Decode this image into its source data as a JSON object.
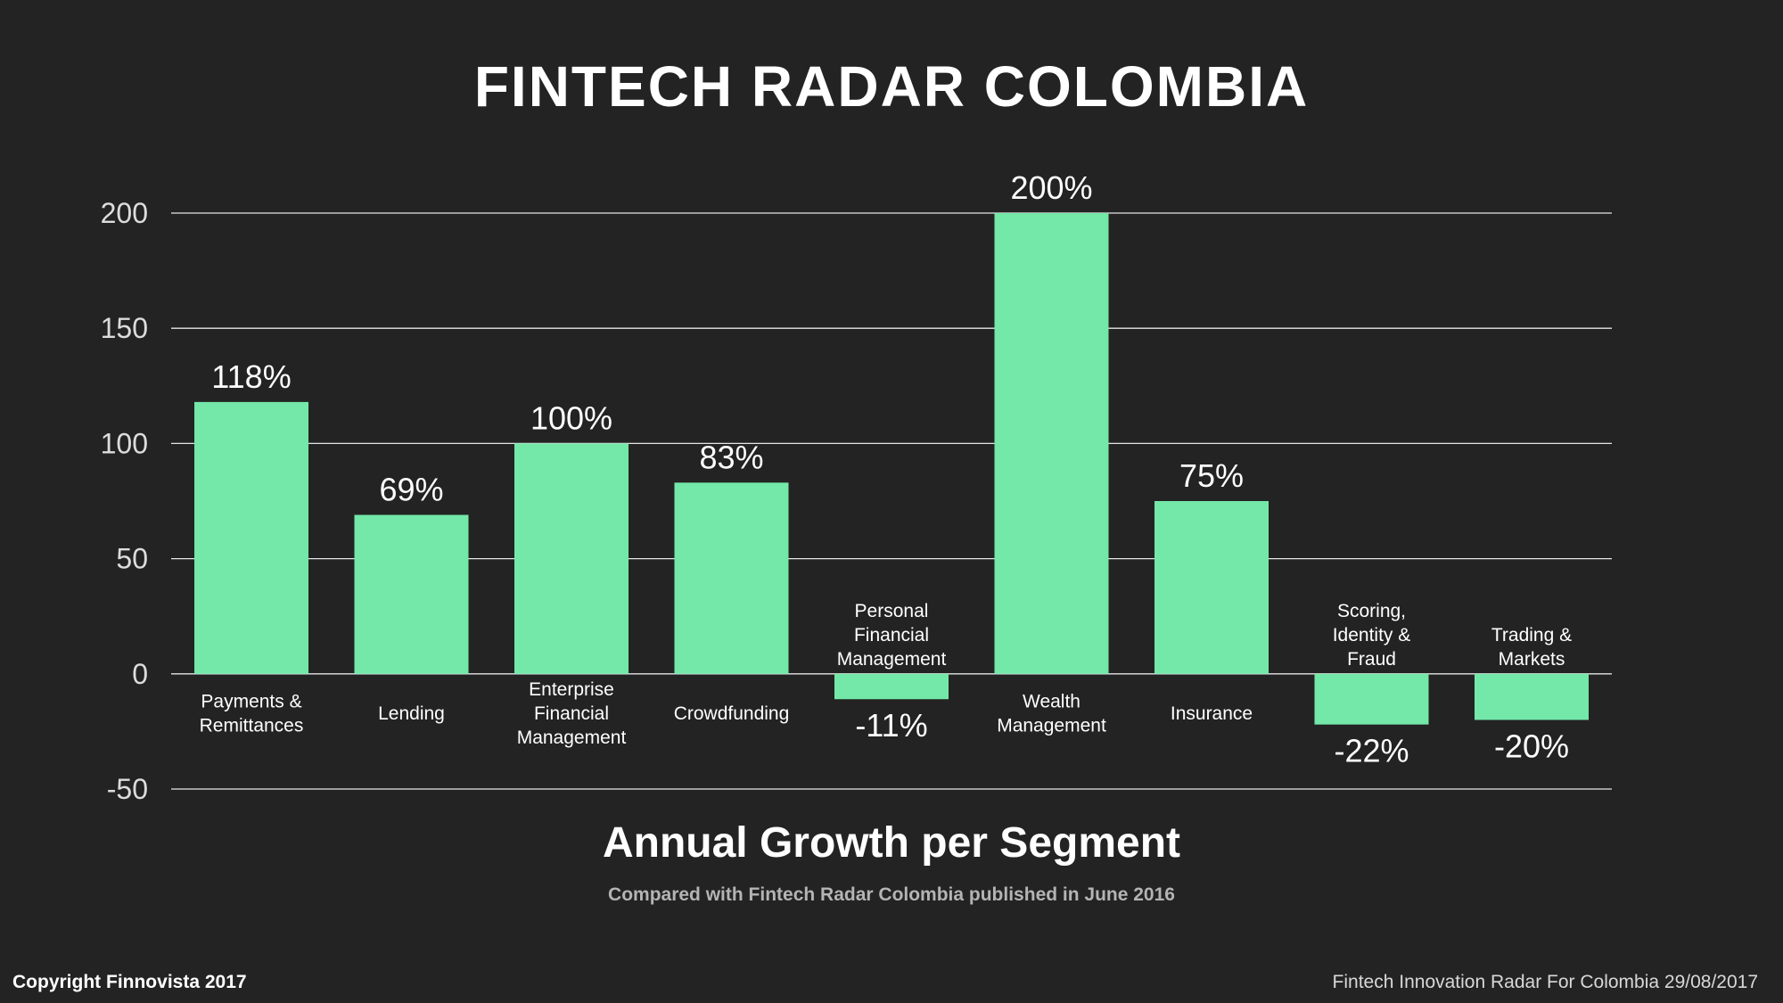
{
  "header": {
    "title": "FINTECH RADAR COLOMBIA"
  },
  "footer": {
    "copyright": "Copyright Finnovista 2017",
    "note": "Fintech Innovation Radar For Colombia 29/08/2017"
  },
  "colors": {
    "bar": "#73e8a9",
    "background": "#232323",
    "grid": "#e6e6e6"
  },
  "chart_data": {
    "type": "bar",
    "xlabel": "Annual Growth per Segment",
    "subtitle": "Compared with Fintech Radar Colombia published in June 2016",
    "ylabel": "",
    "ylim": [
      -50,
      200
    ],
    "yticks": [
      200,
      150,
      100,
      50,
      0,
      -50
    ],
    "grid": true,
    "legend": "none",
    "categories": [
      [
        "Payments &",
        "Remittances"
      ],
      [
        "Lending"
      ],
      [
        "Enterprise",
        "Financial",
        "Management"
      ],
      [
        "Crowdfunding"
      ],
      [
        "Personal",
        "Financial",
        "Management"
      ],
      [
        "Wealth",
        "Management"
      ],
      [
        "Insurance"
      ],
      [
        "Scoring,",
        "Identity &",
        "Fraud"
      ],
      [
        "Trading &",
        "Markets"
      ]
    ],
    "values": [
      118,
      69,
      100,
      83,
      -11,
      200,
      75,
      -22,
      -20
    ],
    "value_labels": [
      "118%",
      "69%",
      "100%",
      "83%",
      "-11%",
      "200%",
      "75%",
      "-22%",
      "-20%"
    ]
  }
}
